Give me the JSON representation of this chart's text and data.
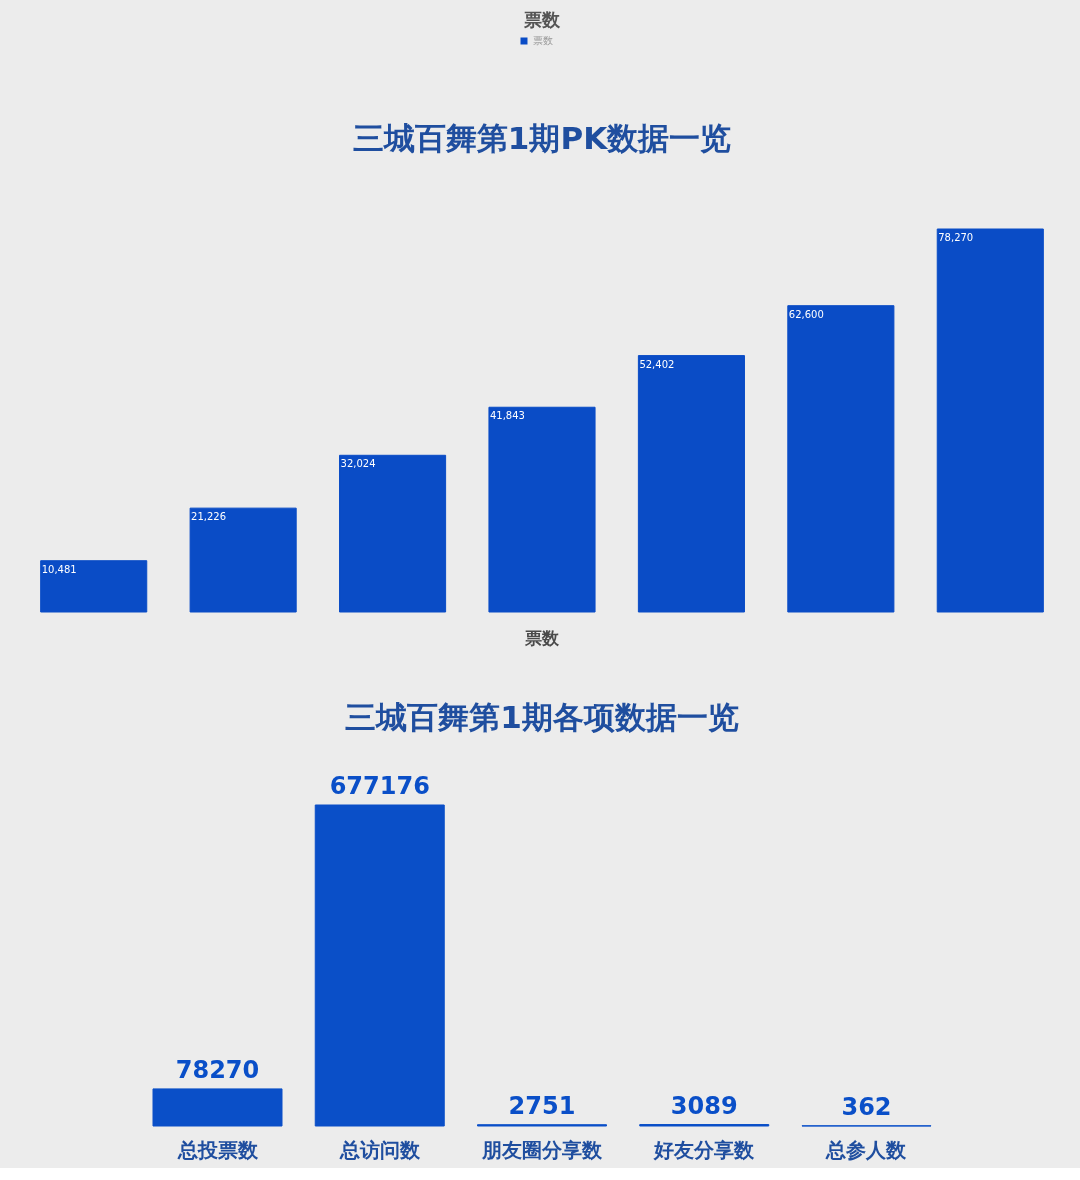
{
  "chart_data": [
    {
      "type": "bar",
      "title": "票数",
      "subtitle": "三城百舞第1期PK数据一览",
      "categories": [
        null,
        null,
        null,
        null,
        null,
        null,
        null
      ],
      "series": [
        {
          "name": "票数",
          "color": "#0a4cc6",
          "values": [
            10481,
            21226,
            32024,
            41843,
            52402,
            62600,
            78270
          ],
          "value_labels": [
            "10,481",
            "21,226",
            "32,024",
            "41,843",
            "52,402",
            "62,600",
            "78,270"
          ]
        }
      ],
      "legend": "top",
      "tick_labels": false
    },
    {
      "type": "bar",
      "title": "票数",
      "subtitle": "三城百舞第1期各项数据一览",
      "categories": [
        "总投票数",
        "总访问数",
        "朋友圈分享数",
        "好友分享数",
        "总参人数"
      ],
      "values": [
        78270,
        677176,
        2751,
        3089,
        362
      ],
      "color": "#0a4fc8",
      "data_labels": true,
      "tick_labels": "x"
    }
  ]
}
